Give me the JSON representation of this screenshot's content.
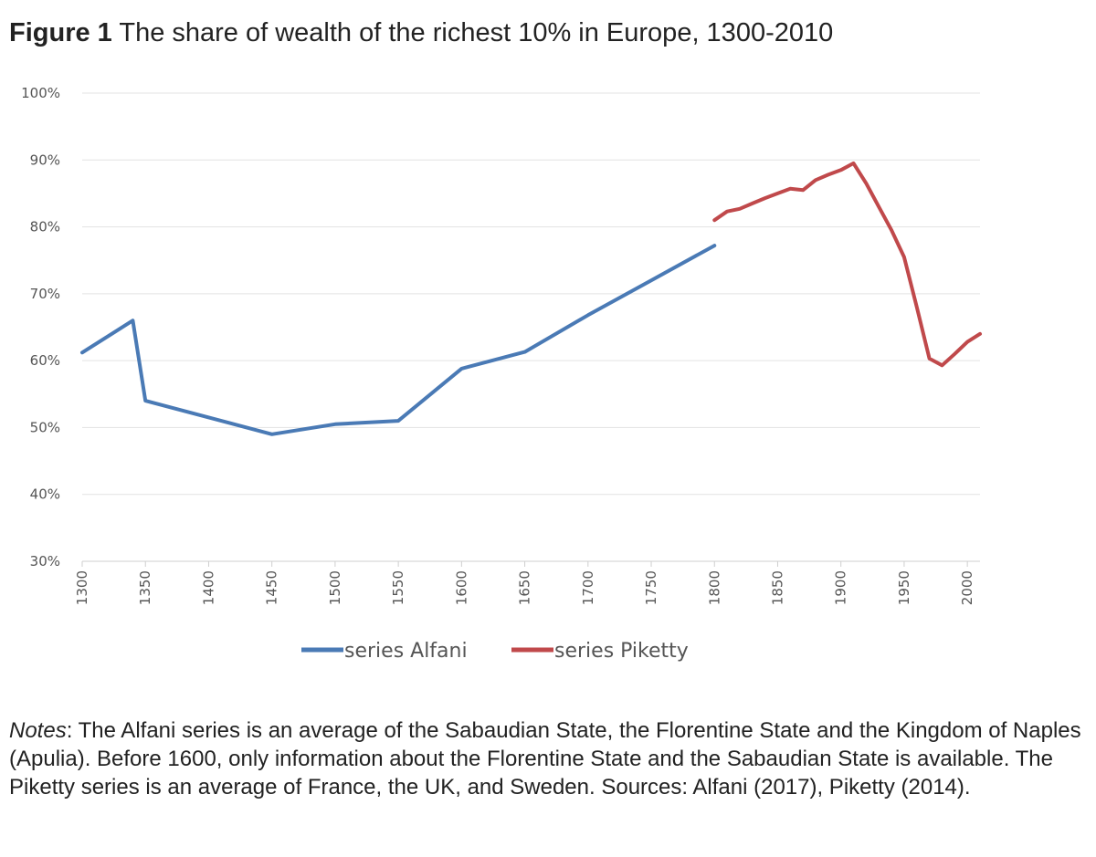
{
  "figure": {
    "label": "Figure 1",
    "title": "The share of wealth of the richest 10% in Europe, 1300-2010"
  },
  "notes": {
    "label": "Notes",
    "text": ": The Alfani series is an average of the Sabaudian State, the Florentine State and the Kingdom of Naples (Apulia). Before 1600, only information about the Florentine State and the Sabaudian State is available. The Piketty series is an average of France, the UK, and Sweden. Sources: Alfani (2017), Piketty (2014)."
  },
  "chart_data": {
    "type": "line",
    "title": "The share of wealth of the richest 10% in Europe, 1300-2010",
    "xlabel": "",
    "ylabel": "",
    "xlim": [
      1300,
      2010
    ],
    "ylim": [
      30,
      100
    ],
    "x_ticks": [
      1300,
      1350,
      1400,
      1450,
      1500,
      1550,
      1600,
      1650,
      1700,
      1750,
      1800,
      1850,
      1900,
      1950,
      2000
    ],
    "y_ticks": [
      30,
      40,
      50,
      60,
      70,
      80,
      90,
      100
    ],
    "y_tick_labels": [
      "30%",
      "40%",
      "50%",
      "60%",
      "70%",
      "80%",
      "90%",
      "100%"
    ],
    "grid": "horizontal",
    "legend_position": "bottom",
    "series": [
      {
        "name": "series Alfani",
        "color": "#4a7ab5",
        "x": [
          1300,
          1340,
          1350,
          1450,
          1500,
          1550,
          1600,
          1650,
          1700,
          1750,
          1800
        ],
        "y": [
          61.2,
          66.0,
          54.0,
          49.0,
          50.5,
          51.0,
          58.8,
          61.3,
          66.8,
          72.0,
          77.2
        ]
      },
      {
        "name": "series Piketty",
        "color": "#c0494b",
        "x": [
          1800,
          1810,
          1820,
          1830,
          1840,
          1850,
          1860,
          1870,
          1880,
          1890,
          1900,
          1910,
          1920,
          1930,
          1940,
          1950,
          1960,
          1970,
          1980,
          1990,
          2000,
          2010
        ],
        "y": [
          81.0,
          82.3,
          82.7,
          83.5,
          84.3,
          85.0,
          85.7,
          85.5,
          87.0,
          87.8,
          88.5,
          89.5,
          86.5,
          83.0,
          79.5,
          75.5,
          68.0,
          60.3,
          59.3,
          61.0,
          62.8,
          64.0
        ]
      }
    ]
  }
}
